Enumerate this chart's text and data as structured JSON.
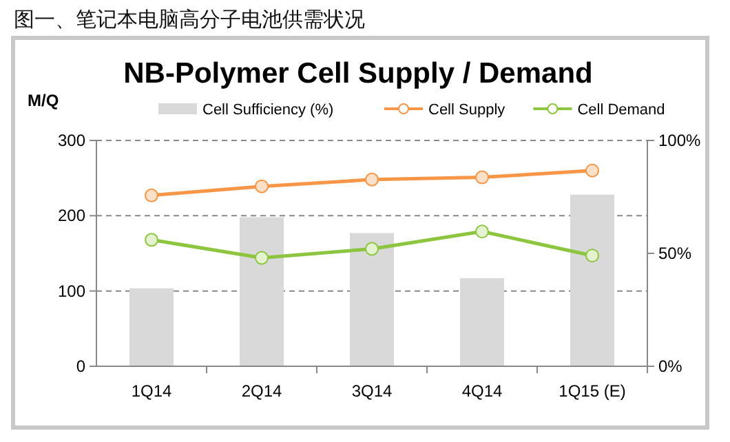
{
  "chart_data": {
    "type": "bar",
    "title": "图一、笔记本电脑高分子电池供需状况",
    "subtitle": "NB-Polymer Cell Supply / Demand",
    "ylabel": "M/Q",
    "categories": [
      "1Q14",
      "2Q14",
      "3Q14",
      "4Q14",
      "1Q15 (E)"
    ],
    "series": [
      {
        "name": "Cell Sufficiency (%)",
        "axis": "y2",
        "color": "#d9d9d9",
        "values": [
          34.5,
          66,
          59,
          39,
          76
        ]
      },
      {
        "name": "Cell Supply",
        "type": "line",
        "color": "#f79646",
        "values": [
          227,
          239,
          248,
          251,
          260
        ]
      },
      {
        "name": "Cell Demand",
        "type": "line",
        "color": "#8cc63f",
        "values": [
          168,
          144,
          156,
          179,
          147
        ]
      }
    ],
    "ylim": [
      0,
      300
    ],
    "yticks": [
      0,
      100,
      200,
      300
    ],
    "y2lim": [
      0,
      100
    ],
    "y2ticks": [
      {
        "value": 0,
        "label": "0%"
      },
      {
        "value": 50,
        "label": "50%"
      },
      {
        "value": 100,
        "label": "100%"
      }
    ],
    "grid": "y",
    "legend": "top",
    "marker": "circle",
    "line_style": "solid"
  }
}
